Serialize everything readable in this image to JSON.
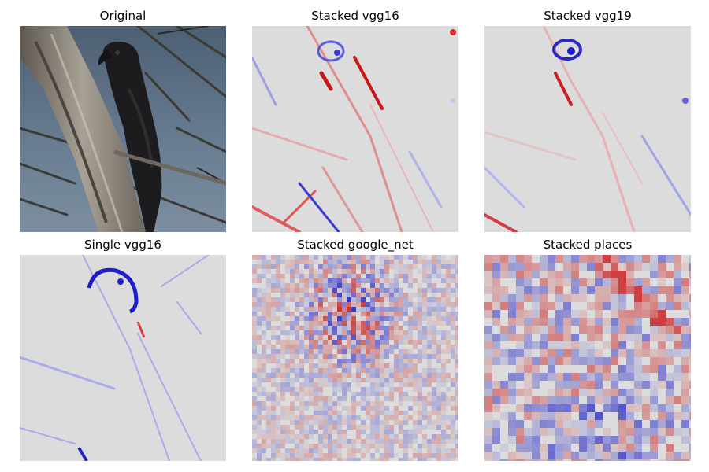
{
  "figure": {
    "panels": [
      {
        "title": "Original",
        "kind": "photo",
        "subject": "dark bird perched on bare tree branches against blue-grey sky"
      },
      {
        "title": "Stacked vgg16",
        "kind": "saliency-heatmap",
        "colormap": "coolwarm",
        "pattern": "smooth"
      },
      {
        "title": "Stacked vgg19",
        "kind": "saliency-heatmap",
        "colormap": "coolwarm",
        "pattern": "smooth"
      },
      {
        "title": "Single vgg16",
        "kind": "saliency-heatmap",
        "colormap": "coolwarm",
        "pattern": "smooth-mostly-blue"
      },
      {
        "title": "Stacked google_net",
        "kind": "saliency-heatmap",
        "colormap": "coolwarm",
        "pattern": "pixelated-fine"
      },
      {
        "title": "Stacked places",
        "kind": "saliency-heatmap",
        "colormap": "coolwarm",
        "pattern": "pixelated-coarse"
      }
    ]
  },
  "colors": {
    "background": "#ffffff",
    "heatmap_neutral": "#dcdcdc",
    "positive": "#d41a1a",
    "negative": "#1e1ec8",
    "sky": "#5c6f84",
    "bird": "#1c1c1e",
    "branch": "#8f8a82"
  }
}
